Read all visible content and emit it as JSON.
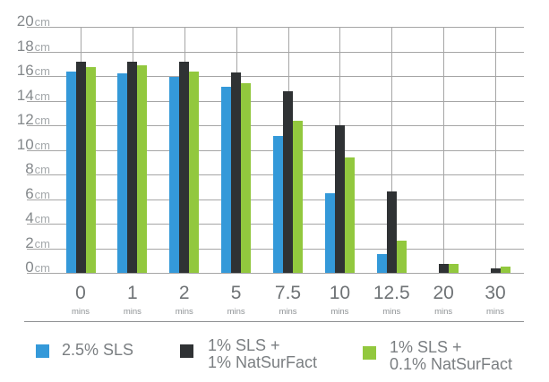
{
  "chart_data": {
    "type": "bar",
    "title": "",
    "categories": [
      "0",
      "1",
      "2",
      "5",
      "7.5",
      "10",
      "12.5",
      "20",
      "30"
    ],
    "category_unit": "mins",
    "y_tick_values": [
      20,
      18,
      16,
      14,
      12,
      10,
      8,
      6,
      4,
      2,
      0
    ],
    "y_unit": "cm",
    "ylim": [
      0,
      20
    ],
    "grid": true,
    "legend_position": "bottom",
    "series": [
      {
        "name": "2.5% SLS",
        "color": "#3499d9",
        "values": [
          16.4,
          16.2,
          15.9,
          15.1,
          11.1,
          6.5,
          1.5,
          0,
          0
        ]
      },
      {
        "name": "1% SLS + 1% NatSurFact",
        "color": "#2f3234",
        "values": [
          17.2,
          17.2,
          17.2,
          16.3,
          14.8,
          12.0,
          6.6,
          0.7,
          0.4
        ]
      },
      {
        "name": "1% SLS + 0.1% NatSurFact",
        "color": "#92c83e",
        "values": [
          16.7,
          16.9,
          16.4,
          15.4,
          12.4,
          9.4,
          2.6,
          0.7,
          0.5
        ]
      }
    ]
  },
  "legend": {
    "items": [
      {
        "label_lines": [
          "2.5% SLS"
        ],
        "color": "#3499d9"
      },
      {
        "label_lines": [
          "1% SLS +",
          "1% NatSurFact"
        ],
        "color": "#2f3234"
      },
      {
        "label_lines": [
          "1% SLS +",
          "0.1% NatSurFact"
        ],
        "color": "#92c83e"
      }
    ]
  },
  "colors": {
    "gridline": "#a6a6a6",
    "divider": "#8f9193",
    "axis_number": "#6f7376",
    "axis_unit": "#8e9295",
    "legend_text": "#7a7e81"
  }
}
